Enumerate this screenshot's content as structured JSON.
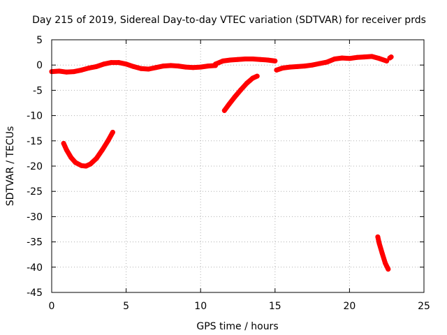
{
  "colors": {
    "series": "#ff0000",
    "grid": "#b0b0b0",
    "axis": "#000000"
  },
  "chart_data": {
    "type": "line",
    "title": "Day 215 of 2019, Sidereal Day-to-day VTEC variation (SDTVAR) for receiver prds",
    "xlabel": "GPS time / hours",
    "ylabel": "SDTVAR / TECUs",
    "xlim": [
      0,
      25
    ],
    "ylim": [
      -45,
      5
    ],
    "xticks": [
      0,
      5,
      10,
      15,
      20,
      25
    ],
    "yticks": [
      5,
      0,
      -5,
      -10,
      -15,
      -20,
      -25,
      -30,
      -35,
      -40,
      -45
    ],
    "grid": true,
    "series": [
      {
        "name": "SDTVAR",
        "segments": [
          {
            "x": [
              0.0,
              0.5,
              1.0,
              1.5,
              2.0,
              2.5,
              3.0,
              3.5,
              4.0,
              4.5,
              5.0,
              5.5,
              6.0,
              6.5,
              7.0,
              7.5,
              8.0,
              8.5,
              9.0,
              9.5,
              10.0,
              10.5,
              11.0
            ],
            "y": [
              -1.3,
              -1.2,
              -1.4,
              -1.3,
              -1.0,
              -0.6,
              -0.3,
              0.2,
              0.5,
              0.5,
              0.2,
              -0.3,
              -0.7,
              -0.8,
              -0.5,
              -0.2,
              -0.1,
              -0.2,
              -0.4,
              -0.5,
              -0.4,
              -0.2,
              -0.1
            ]
          },
          {
            "x": [
              11.0,
              11.5,
              12.0,
              12.5,
              13.0,
              13.5,
              14.0,
              14.5,
              15.0
            ],
            "y": [
              0.2,
              0.8,
              1.0,
              1.1,
              1.2,
              1.2,
              1.1,
              1.0,
              0.8
            ]
          },
          {
            "x": [
              15.1,
              15.5,
              16.0,
              16.5,
              17.0,
              17.5,
              18.0,
              18.5,
              19.0,
              19.5,
              20.0,
              20.5,
              21.0,
              21.5,
              22.0,
              22.5
            ],
            "y": [
              -1.0,
              -0.6,
              -0.4,
              -0.3,
              -0.2,
              0.0,
              0.3,
              0.6,
              1.2,
              1.4,
              1.3,
              1.5,
              1.6,
              1.7,
              1.3,
              0.8
            ]
          },
          {
            "x": [
              22.7,
              22.8
            ],
            "y": [
              1.4,
              1.6
            ]
          },
          {
            "x": [
              0.8,
              1.0,
              1.3,
              1.6,
              2.0,
              2.3,
              2.6,
              3.0,
              3.4,
              3.8,
              4.1
            ],
            "y": [
              -15.5,
              -16.8,
              -18.3,
              -19.3,
              -19.9,
              -20.0,
              -19.6,
              -18.5,
              -16.8,
              -14.9,
              -13.3
            ]
          },
          {
            "x": [
              11.6,
              11.9,
              12.3,
              12.7,
              13.1,
              13.5,
              13.8
            ],
            "y": [
              -9.0,
              -7.8,
              -6.3,
              -4.9,
              -3.6,
              -2.6,
              -2.2
            ]
          },
          {
            "x": [
              21.9,
              22.0,
              22.2,
              22.4,
              22.6
            ],
            "y": [
              -34.0,
              -35.3,
              -37.3,
              -39.2,
              -40.4
            ]
          }
        ]
      }
    ]
  }
}
